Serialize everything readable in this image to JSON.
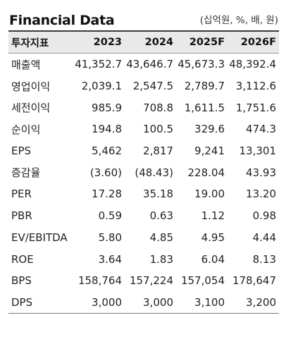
{
  "title": "Financial Data",
  "unit": "(십억원, %, 배, 원)",
  "header": {
    "label": "투자지표",
    "years": [
      "2023",
      "2024",
      "2025F",
      "2026F"
    ]
  },
  "rows": [
    {
      "label": "매출액",
      "values": [
        "41,352.7",
        "43,646.7",
        "45,673.3",
        "48,392.4"
      ]
    },
    {
      "label": "영업이익",
      "values": [
        "2,039.1",
        "2,547.5",
        "2,789.7",
        "3,112.6"
      ]
    },
    {
      "label": "세전이익",
      "values": [
        "985.9",
        "708.8",
        "1,611.5",
        "1,751.6"
      ]
    },
    {
      "label": "순이익",
      "values": [
        "194.8",
        "100.5",
        "329.6",
        "474.3"
      ]
    },
    {
      "label": "EPS",
      "values": [
        "5,462",
        "2,817",
        "9,241",
        "13,301"
      ]
    },
    {
      "label": "증감율",
      "values": [
        "(3.60)",
        "(48.43)",
        "228.04",
        "43.93"
      ]
    },
    {
      "label": "PER",
      "values": [
        "17.28",
        "35.18",
        "19.00",
        "13.20"
      ]
    },
    {
      "label": "PBR",
      "values": [
        "0.59",
        "0.63",
        "1.12",
        "0.98"
      ]
    },
    {
      "label": "EV/EBITDA",
      "values": [
        "5.80",
        "4.85",
        "4.95",
        "4.44"
      ]
    },
    {
      "label": "ROE",
      "values": [
        "3.64",
        "1.83",
        "6.04",
        "8.13"
      ]
    },
    {
      "label": "BPS",
      "values": [
        "158,764",
        "157,224",
        "157,054",
        "178,647"
      ]
    },
    {
      "label": "DPS",
      "values": [
        "3,000",
        "3,000",
        "3,100",
        "3,200"
      ]
    }
  ]
}
